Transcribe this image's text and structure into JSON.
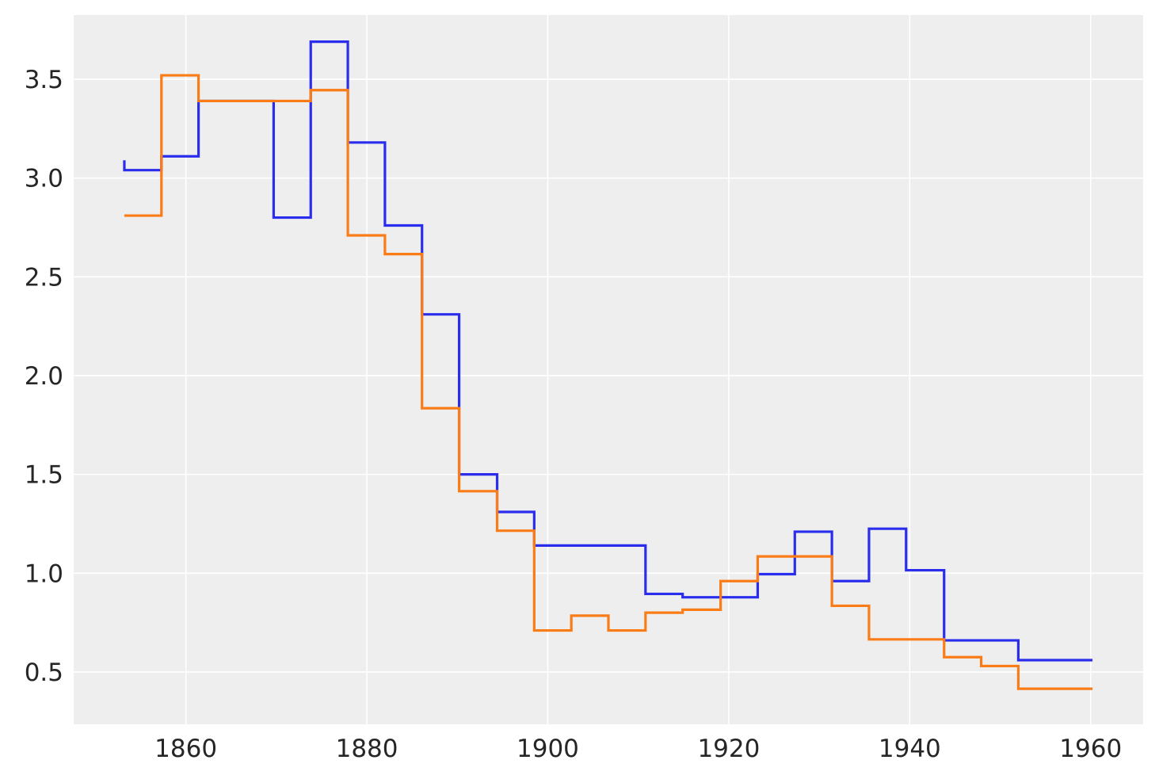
{
  "chart_data": {
    "type": "line",
    "step": "post",
    "title": "",
    "xlabel": "",
    "ylabel": "",
    "xlim": [
      1847.6,
      1965.8
    ],
    "ylim": [
      0.235,
      3.825
    ],
    "xticks": [
      1860,
      1880,
      1900,
      1920,
      1940,
      1960
    ],
    "yticks": [
      0.5,
      1.0,
      1.5,
      2.0,
      2.5,
      3.0,
      3.5
    ],
    "xtick_labels": [
      "1860",
      "1880",
      "1900",
      "1920",
      "1940",
      "1960"
    ],
    "ytick_labels": [
      "0.5",
      "1.0",
      "1.5",
      "2.0",
      "2.5",
      "3.0",
      "3.5"
    ],
    "grid": true,
    "background": "#eeeeee",
    "series": [
      {
        "color": "#2a2eec",
        "x": [
          1853.2,
          1853.2,
          1857.3,
          1861.4,
          1865.5,
          1869.7,
          1873.8,
          1877.9,
          1882.0,
          1886.1,
          1890.2,
          1894.4,
          1898.5,
          1902.6,
          1906.7,
          1910.8,
          1914.9,
          1919.1,
          1923.2,
          1927.3,
          1931.4,
          1935.5,
          1939.6,
          1943.8,
          1947.9,
          1952.0,
          1956.1,
          1960.2
        ],
        "y": [
          3.09,
          3.04,
          3.11,
          3.39,
          3.39,
          2.8,
          3.69,
          3.18,
          2.76,
          2.31,
          1.5,
          1.31,
          1.14,
          1.14,
          1.14,
          0.895,
          0.878,
          0.878,
          0.995,
          1.21,
          0.96,
          1.225,
          1.015,
          0.66,
          0.66,
          0.56,
          0.56,
          0.56
        ]
      },
      {
        "color": "#fa7c17",
        "x": [
          1853.2,
          1857.3,
          1861.4,
          1865.5,
          1869.7,
          1873.8,
          1877.9,
          1882.0,
          1886.1,
          1890.2,
          1894.4,
          1898.5,
          1902.6,
          1906.7,
          1910.8,
          1914.9,
          1919.1,
          1923.2,
          1927.3,
          1931.4,
          1935.5,
          1939.6,
          1943.8,
          1947.9,
          1952.0,
          1956.1,
          1960.2
        ],
        "y": [
          2.81,
          3.52,
          3.39,
          3.39,
          3.39,
          3.445,
          2.71,
          2.615,
          1.835,
          1.415,
          1.215,
          0.71,
          0.785,
          0.71,
          0.8,
          0.815,
          0.96,
          1.085,
          1.085,
          0.835,
          0.665,
          0.665,
          0.575,
          0.53,
          0.415,
          0.415,
          0.415
        ]
      }
    ]
  }
}
